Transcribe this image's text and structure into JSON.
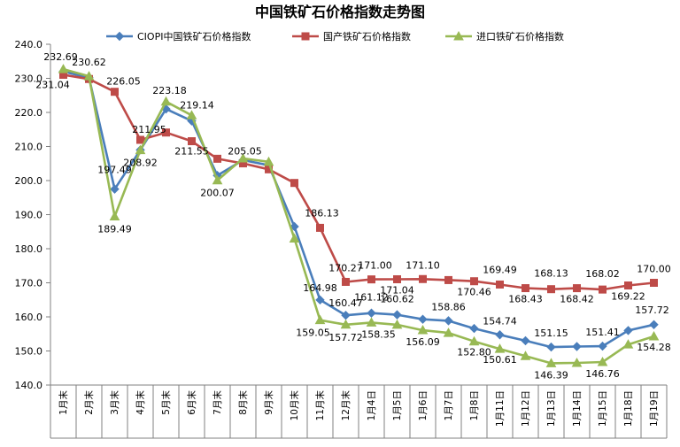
{
  "chart_data": {
    "type": "line",
    "title": "中国铁矿石价格指数走势图",
    "xlabel": "",
    "ylabel": "",
    "ylim": [
      140.0,
      240.0
    ],
    "yticks": [
      "140.0",
      "150.0",
      "160.0",
      "170.0",
      "180.0",
      "190.0",
      "200.0",
      "210.0",
      "220.0",
      "230.0",
      "240.0"
    ],
    "grid": false,
    "legend_position": "top",
    "categories": [
      "1月末",
      "2月末",
      "3月末",
      "4月末",
      "5月末",
      "6月末",
      "7月末",
      "8月末",
      "9月末",
      "10月末",
      "11月末",
      "12月末",
      "1月4日",
      "1月5日",
      "1月6日",
      "1月7日",
      "1月8日",
      "1月11日",
      "1月12日",
      "1月13日",
      "1月14日",
      "1月15日",
      "1月18日",
      "1月19日"
    ],
    "series": [
      {
        "name": "CIOPI中国铁矿石价格指数",
        "color": "#4a7ebb",
        "marker": "diamond",
        "values": [
          232.0,
          230.2,
          197.49,
          209.0,
          221.0,
          217.5,
          201.5,
          206.0,
          204.5,
          186.5,
          164.98,
          160.47,
          161.12,
          160.62,
          159.3,
          158.86,
          156.6,
          154.74,
          153.0,
          151.15,
          151.3,
          151.41,
          156.0,
          157.72
        ],
        "labels": [
          "",
          "",
          "197.49",
          "",
          "",
          "",
          "",
          "",
          "",
          "",
          "164.98",
          "160.47",
          "161.12",
          "160.62",
          "",
          "158.86",
          "",
          "154.74",
          "",
          "151.15",
          "",
          "151.41",
          "",
          "157.72"
        ]
      },
      {
        "name": "国产铁矿石价格指数",
        "color": "#be4b48",
        "marker": "square",
        "values": [
          231.04,
          229.8,
          226.05,
          211.95,
          214.1,
          211.55,
          206.4,
          205.05,
          203.3,
          199.3,
          186.13,
          170.27,
          171.0,
          171.04,
          171.1,
          170.8,
          170.46,
          169.49,
          168.43,
          168.13,
          168.42,
          168.02,
          169.22,
          170.0
        ],
        "labels": [
          "231.04",
          "",
          "226.05",
          "211.95",
          "",
          "211.55",
          "",
          "205.05",
          "",
          "",
          "186.13",
          "170.27",
          "171.00",
          "171.04",
          "171.10",
          "",
          "170.46",
          "169.49",
          "168.43",
          "168.13",
          "168.42",
          "168.02",
          "169.22",
          "170.00"
        ]
      },
      {
        "name": "进口铁矿石价格指数",
        "color": "#98b954",
        "marker": "triangle",
        "values": [
          232.69,
          230.62,
          189.49,
          208.92,
          223.18,
          219.14,
          200.07,
          206.5,
          205.5,
          183.0,
          159.05,
          157.72,
          158.35,
          157.7,
          156.09,
          155.3,
          152.8,
          150.61,
          148.5,
          146.39,
          146.5,
          146.76,
          151.9,
          154.28
        ],
        "labels": [
          "232.69",
          "230.62",
          "189.49",
          "208.92",
          "223.18",
          "219.14",
          "200.07",
          "",
          "",
          "",
          "159.05",
          "157.72",
          "158.35",
          "",
          "156.09",
          "",
          "152.80",
          "150.61",
          "",
          "146.39",
          "",
          "146.76",
          "",
          "154.28"
        ]
      }
    ]
  }
}
